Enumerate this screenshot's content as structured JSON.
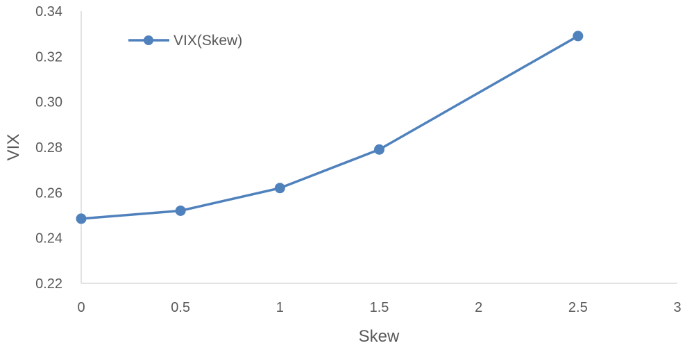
{
  "chart_data": {
    "type": "line",
    "xlabel": "Skew",
    "ylabel": "VIX",
    "xlim": [
      0,
      3
    ],
    "ylim": [
      0.22,
      0.34
    ],
    "x_ticks": [
      "0",
      "0.5",
      "1",
      "1.5",
      "2",
      "2.5",
      "3"
    ],
    "y_ticks": [
      "0.22",
      "0.24",
      "0.26",
      "0.28",
      "0.30",
      "0.32",
      "0.34"
    ],
    "grid": false,
    "legend_position": "top-left",
    "series": [
      {
        "name": "VIX(Skew)",
        "color": "#4F81BD",
        "x": [
          0,
          0.5,
          1,
          1.5,
          2.5
        ],
        "y": [
          0.2485,
          0.252,
          0.262,
          0.279,
          0.329
        ]
      }
    ]
  }
}
